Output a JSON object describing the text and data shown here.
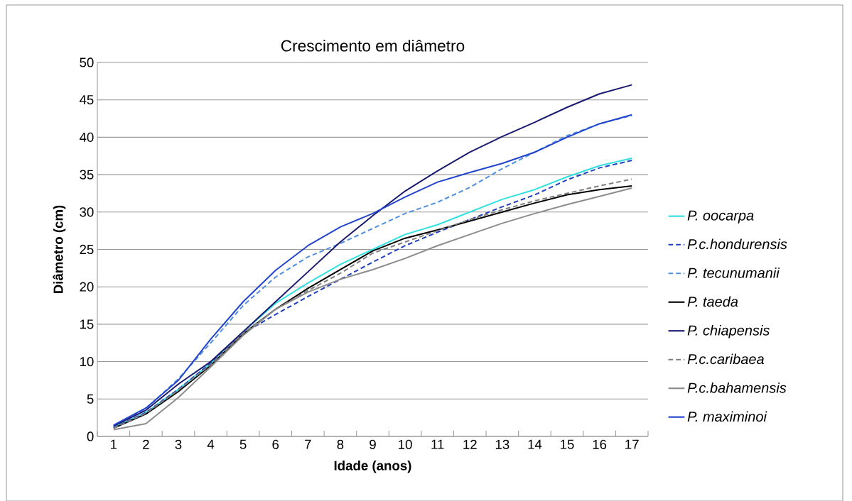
{
  "chart_data": {
    "type": "line",
    "title": "Crescimento em diâmetro",
    "xlabel": "Idade (anos)",
    "ylabel": "Diâmetro (cm)",
    "categories": [
      "1",
      "2",
      "3",
      "4",
      "5",
      "6",
      "7",
      "8",
      "9",
      "10",
      "11",
      "12",
      "13",
      "14",
      "15",
      "16",
      "17"
    ],
    "ylim": [
      0,
      50
    ],
    "yticks": [
      0,
      5,
      10,
      15,
      20,
      25,
      30,
      35,
      40,
      45,
      50
    ],
    "grid": "y",
    "legend": "right",
    "marker": "none",
    "series": [
      {
        "name": "P. oocarpa",
        "color": "#33e0e0",
        "line_style": "solid",
        "values": [
          1.2,
          3.2,
          6.3,
          9.8,
          14,
          17.8,
          20.5,
          23,
          25,
          27,
          28.3,
          30,
          31.7,
          33,
          34.7,
          36.2,
          37.2
        ]
      },
      {
        "name": "P.c.hondurensis",
        "color": "#2040c0",
        "line_style": "dashed",
        "values": [
          1.2,
          3.2,
          6.3,
          9.8,
          13.8,
          16.3,
          18.7,
          21,
          23.3,
          25.5,
          27.3,
          29,
          30.7,
          32.3,
          34.3,
          35.9,
          36.9
        ]
      },
      {
        "name": "P. tecunumanii",
        "color": "#5090e0",
        "line_style": "dashed",
        "values": [
          1.3,
          3.7,
          7.7,
          12.5,
          17.5,
          21.3,
          24,
          25.8,
          27.8,
          29.8,
          31.3,
          33.3,
          35.8,
          38,
          40.2,
          41.8,
          42.9
        ]
      },
      {
        "name": "P. taeda",
        "color": "#000000",
        "line_style": "solid",
        "values": [
          1.1,
          3,
          6,
          9.5,
          13.7,
          17,
          19.8,
          22.3,
          24.8,
          26.5,
          27.6,
          28.8,
          30,
          31.2,
          32.3,
          33,
          33.5
        ]
      },
      {
        "name": "P. chiapensis",
        "color": "#1a1a70",
        "line_style": "solid",
        "values": [
          1.4,
          3.5,
          7,
          10,
          14,
          18,
          22,
          26,
          29.5,
          32.8,
          35.5,
          38,
          40.1,
          42,
          44,
          45.8,
          47
        ]
      },
      {
        "name": "P.c.caribaea",
        "color": "#808080",
        "line_style": "dashed",
        "values": [
          1.1,
          3.1,
          6.2,
          9.6,
          13.8,
          17,
          19.5,
          21.8,
          24.5,
          26,
          27.5,
          29,
          30.3,
          31.5,
          32.5,
          33.5,
          34.4
        ]
      },
      {
        "name": "P.c.bahamensis",
        "color": "#8c8c8c",
        "line_style": "solid",
        "values": [
          0.9,
          1.7,
          5.2,
          9.3,
          13.5,
          17,
          19.3,
          21,
          22.3,
          23.8,
          25.5,
          27,
          28.5,
          29.8,
          31,
          32.1,
          33.2
        ]
      },
      {
        "name": "P. maximinoi",
        "color": "#2244cc",
        "line_style": "solid",
        "values": [
          1.5,
          3.8,
          7.5,
          13,
          18,
          22.2,
          25.5,
          28,
          29.8,
          32,
          34,
          35.3,
          36.5,
          38,
          40,
          41.8,
          43
        ]
      }
    ]
  }
}
